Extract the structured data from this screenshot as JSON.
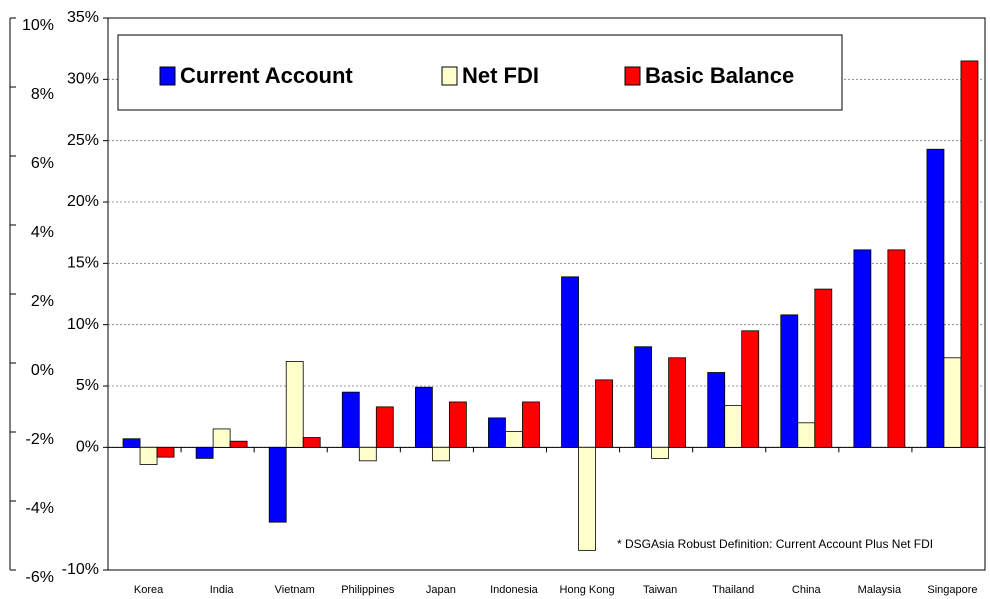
{
  "chart_data": {
    "type": "bar",
    "categories": [
      "Korea",
      "India",
      "Vietnam",
      "Philippines",
      "Japan",
      "Indonesia",
      "Hong Kong",
      "Taiwan",
      "Thailand",
      "China",
      "Malaysia",
      "Singapore"
    ],
    "series": [
      {
        "name": "Current Account",
        "color": "#0000ff",
        "values": [
          0.7,
          -0.9,
          -6.1,
          4.5,
          4.9,
          2.4,
          13.9,
          8.2,
          6.1,
          10.8,
          16.1,
          24.3
        ]
      },
      {
        "name": "Net FDI",
        "color": "#ffffcc",
        "values": [
          -1.4,
          1.5,
          7.0,
          -1.1,
          -1.1,
          1.3,
          -8.4,
          -0.9,
          3.4,
          2.0,
          0,
          7.3
        ]
      },
      {
        "name": "Basic Balance",
        "color": "#ff0000",
        "values": [
          -0.8,
          0.5,
          0.8,
          3.3,
          3.7,
          3.7,
          5.5,
          7.3,
          9.5,
          12.9,
          16.1,
          31.5
        ]
      }
    ],
    "ylim": [
      -10,
      35
    ],
    "yticks": [
      {
        "value": -10,
        "label": "-10%"
      },
      {
        "value": 0,
        "label": "0%"
      },
      {
        "value": 5,
        "label": "5%"
      },
      {
        "value": 10,
        "label": "10%"
      },
      {
        "value": 15,
        "label": "15%"
      },
      {
        "value": 20,
        "label": "20%"
      },
      {
        "value": 25,
        "label": "25%"
      },
      {
        "value": 30,
        "label": "30%"
      },
      {
        "value": 35,
        "label": "35%"
      }
    ],
    "y2lim": [
      -6,
      10
    ],
    "y2ticks": [
      {
        "value": -6,
        "label": "-6%"
      },
      {
        "value": -4,
        "label": "-4%"
      },
      {
        "value": -2,
        "label": "-2%"
      },
      {
        "value": 0,
        "label": "0%"
      },
      {
        "value": 2,
        "label": "2%"
      },
      {
        "value": 4,
        "label": "4%"
      },
      {
        "value": 6,
        "label": "6%"
      },
      {
        "value": 8,
        "label": "8%"
      },
      {
        "value": 10,
        "label": "10%"
      }
    ],
    "annotation": "* DSGAsia Robust Definition: Current Account Plus Net FDI",
    "grid": true,
    "legend": "top"
  }
}
